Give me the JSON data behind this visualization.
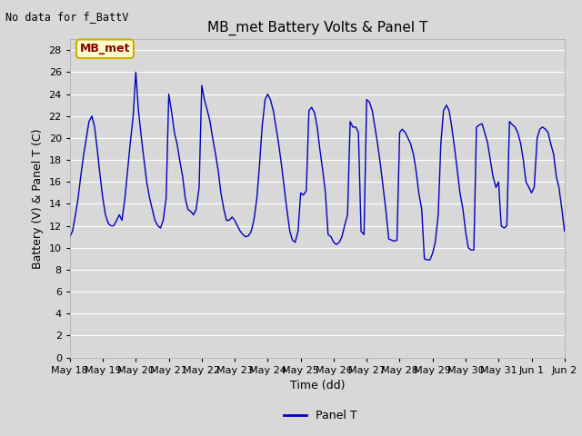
{
  "title": "MB_met Battery Volts & Panel T",
  "no_data_text": "No data for f_BattV",
  "xlabel": "Time (dd)",
  "ylabel": "Battery (V) & Panel T (C)",
  "ylim": [
    0,
    29
  ],
  "yticks": [
    0,
    2,
    4,
    6,
    8,
    10,
    12,
    14,
    16,
    18,
    20,
    22,
    24,
    26,
    28
  ],
  "legend_label": "Panel T",
  "legend_color": "#0000bb",
  "line_color": "#0000bb",
  "bg_color": "#d8d8d8",
  "plot_bg_color": "#d8d8d8",
  "grid_color": "#ffffff",
  "box_fill_color": "#ffffcc",
  "box_edge_color": "#ccaa00",
  "box_text": "MB_met",
  "box_text_color": "#880000",
  "title_fontsize": 11,
  "label_fontsize": 9,
  "tick_fontsize": 8,
  "x_start_day": 18,
  "x_end_day": 33,
  "x_tick_days": [
    18,
    19,
    20,
    21,
    22,
    23,
    24,
    25,
    26,
    27,
    28,
    29,
    30,
    31,
    32,
    33
  ],
  "x_tick_labels": [
    "May 18",
    "May 19",
    "May 20",
    "May 21",
    "May 22",
    "May 23",
    "May 24",
    "May 25",
    "May 26",
    "May 27",
    "May 28",
    "May 29",
    "May 30",
    "May 31",
    "Jun 1",
    "Jun 2"
  ],
  "panel_t_x": [
    18.0,
    18.08,
    18.17,
    18.25,
    18.33,
    18.42,
    18.5,
    18.58,
    18.67,
    18.75,
    18.83,
    18.92,
    19.0,
    19.08,
    19.17,
    19.25,
    19.33,
    19.42,
    19.5,
    19.58,
    19.67,
    19.75,
    19.83,
    19.92,
    20.0,
    20.08,
    20.17,
    20.25,
    20.33,
    20.42,
    20.5,
    20.58,
    20.67,
    20.75,
    20.83,
    20.92,
    21.0,
    21.08,
    21.17,
    21.25,
    21.33,
    21.42,
    21.5,
    21.58,
    21.67,
    21.75,
    21.83,
    21.92,
    22.0,
    22.08,
    22.17,
    22.25,
    22.33,
    22.42,
    22.5,
    22.58,
    22.67,
    22.75,
    22.83,
    22.92,
    23.0,
    23.08,
    23.17,
    23.25,
    23.33,
    23.42,
    23.5,
    23.58,
    23.67,
    23.75,
    23.83,
    23.92,
    24.0,
    24.08,
    24.17,
    24.25,
    24.33,
    24.42,
    24.5,
    24.58,
    24.67,
    24.75,
    24.83,
    24.92,
    25.0,
    25.08,
    25.17,
    25.25,
    25.33,
    25.42,
    25.5,
    25.58,
    25.67,
    25.75,
    25.83,
    25.92,
    26.0,
    26.08,
    26.17,
    26.25,
    26.33,
    26.42,
    26.5,
    26.58,
    26.67,
    26.75,
    26.83,
    26.92,
    27.0,
    27.08,
    27.17,
    27.25,
    27.33,
    27.42,
    27.5,
    27.58,
    27.67,
    27.75,
    27.83,
    27.92,
    28.0,
    28.08,
    28.17,
    28.25,
    28.33,
    28.42,
    28.5,
    28.58,
    28.67,
    28.75,
    28.83,
    28.92,
    29.0,
    29.08,
    29.17,
    29.25,
    29.33,
    29.42,
    29.5,
    29.58,
    29.67,
    29.75,
    29.83,
    29.92,
    30.0,
    30.08,
    30.17,
    30.25,
    30.33,
    30.42,
    30.5,
    30.58,
    30.67,
    30.75,
    30.83,
    30.92,
    31.0,
    31.08,
    31.17,
    31.25,
    31.33,
    31.42,
    31.5,
    31.58,
    31.67,
    31.75,
    31.83,
    31.92,
    32.0,
    32.08,
    32.17,
    32.25,
    32.33,
    32.42,
    32.5,
    32.58,
    32.67,
    32.75,
    32.83,
    32.92,
    33.0
  ],
  "panel_t_y": [
    11.0,
    11.5,
    13.0,
    14.5,
    16.5,
    18.5,
    20.0,
    21.5,
    22.0,
    21.0,
    19.0,
    16.5,
    14.5,
    13.0,
    12.2,
    12.0,
    12.0,
    12.5,
    13.0,
    12.5,
    14.5,
    17.0,
    19.5,
    22.0,
    26.0,
    22.5,
    20.0,
    18.0,
    16.0,
    14.5,
    13.5,
    12.5,
    12.0,
    11.8,
    12.5,
    14.5,
    24.0,
    22.5,
    20.5,
    19.5,
    18.0,
    16.5,
    14.5,
    13.5,
    13.3,
    13.0,
    13.5,
    15.5,
    24.8,
    23.5,
    22.5,
    21.5,
    20.0,
    18.5,
    17.0,
    15.0,
    13.5,
    12.5,
    12.5,
    12.8,
    12.5,
    12.0,
    11.5,
    11.2,
    11.0,
    11.1,
    11.5,
    12.5,
    14.5,
    17.5,
    21.0,
    23.5,
    24.0,
    23.5,
    22.5,
    21.0,
    19.5,
    17.5,
    15.5,
    13.5,
    11.5,
    10.7,
    10.5,
    11.5,
    15.0,
    14.8,
    15.2,
    22.5,
    22.8,
    22.3,
    21.0,
    19.0,
    17.0,
    15.0,
    11.2,
    11.0,
    10.5,
    10.3,
    10.5,
    11.0,
    12.0,
    13.0,
    21.5,
    21.0,
    21.0,
    20.5,
    11.5,
    11.2,
    23.5,
    23.3,
    22.5,
    21.0,
    19.5,
    17.5,
    15.5,
    13.5,
    10.8,
    10.7,
    10.6,
    10.7,
    20.5,
    20.8,
    20.5,
    20.0,
    19.5,
    18.5,
    17.0,
    15.0,
    13.5,
    9.0,
    8.9,
    8.9,
    9.5,
    10.5,
    13.0,
    19.5,
    22.5,
    23.0,
    22.5,
    21.0,
    19.0,
    17.0,
    15.0,
    13.5,
    11.5,
    10.0,
    9.8,
    9.8,
    21.0,
    21.2,
    21.3,
    20.5,
    19.5,
    18.0,
    16.5,
    15.5,
    16.0,
    12.0,
    11.8,
    12.0,
    21.5,
    21.2,
    21.0,
    20.5,
    19.5,
    18.0,
    16.0,
    15.5,
    15.0,
    15.5,
    20.0,
    20.8,
    21.0,
    20.8,
    20.5,
    19.5,
    18.5,
    16.5,
    15.5,
    13.5,
    11.5
  ]
}
